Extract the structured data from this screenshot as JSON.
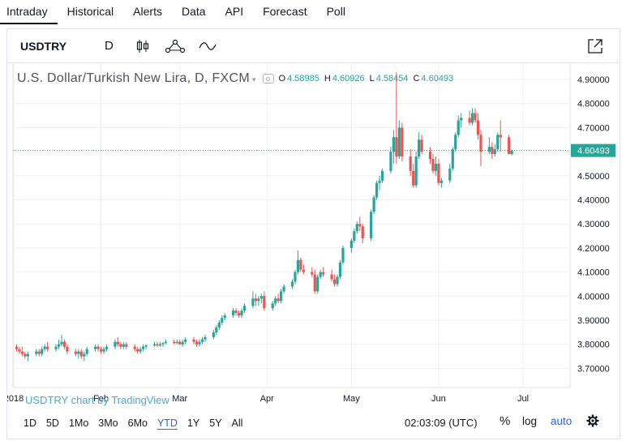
{
  "tabs": [
    "Intraday",
    "Historical",
    "Alerts",
    "Data",
    "API",
    "Forecast",
    "Poll"
  ],
  "toolbar": {
    "symbol": "USDTRY",
    "interval": "D",
    "icons": [
      "candles-icon",
      "indicators-icon",
      "compare-icon",
      "expand-icon"
    ]
  },
  "legend": {
    "title": "U.S. Dollar/Turkish New Lira, D, FXCM",
    "o_label": "O",
    "o": "4.58985",
    "h_label": "H",
    "h": "4.60926",
    "l_label": "L",
    "l": "4.58454",
    "c_label": "C",
    "c": "4.60493"
  },
  "watermark": "USDTRY chart by TradingView",
  "bottombar": {
    "ranges": [
      "1D",
      "5D",
      "1Mo",
      "3Mo",
      "6Mo",
      "YTD",
      "1Y",
      "5Y",
      "All"
    ],
    "active_range": "YTD",
    "clock": "02:03:09 (UTC)",
    "percent": "%",
    "log": "log",
    "auto": "auto",
    "settings_icon": "gear-icon"
  },
  "colors": {
    "up": "#26a69a",
    "down": "#ef5350",
    "price_tag": "#26a69a",
    "grid": "#eef0f3"
  },
  "chart_data": {
    "type": "candlestick",
    "symbol": "USDTRY",
    "ylim": [
      3.65,
      4.95
    ],
    "yticks": [
      "3.70000",
      "3.80000",
      "3.90000",
      "4.00000",
      "4.10000",
      "4.20000",
      "4.30000",
      "4.40000",
      "4.50000",
      "4.60000",
      "4.70000",
      "4.80000",
      "4.90000"
    ],
    "x_labels": [
      {
        "label": "2018",
        "day": 0
      },
      {
        "label": "Feb",
        "day": 31
      },
      {
        "label": "Mar",
        "day": 59
      },
      {
        "label": "Apr",
        "day": 90
      },
      {
        "label": "May",
        "day": 120
      },
      {
        "label": "Jun",
        "day": 151
      },
      {
        "label": "Jul",
        "day": 181
      }
    ],
    "xlim": [
      0,
      198
    ],
    "last_price": 4.60493,
    "last_price_label": "4.60493",
    "candles": [
      {
        "d": 1,
        "o": 3.79,
        "h": 3.8,
        "l": 3.77,
        "c": 3.78
      },
      {
        "d": 2,
        "o": 3.78,
        "h": 3.79,
        "l": 3.76,
        "c": 3.77
      },
      {
        "d": 3,
        "o": 3.77,
        "h": 3.79,
        "l": 3.75,
        "c": 3.76
      },
      {
        "d": 4,
        "o": 3.76,
        "h": 3.77,
        "l": 3.74,
        "c": 3.75
      },
      {
        "d": 5,
        "o": 3.75,
        "h": 3.77,
        "l": 3.73,
        "c": 3.76
      },
      {
        "d": 8,
        "o": 3.76,
        "h": 3.78,
        "l": 3.75,
        "c": 3.77
      },
      {
        "d": 9,
        "o": 3.77,
        "h": 3.78,
        "l": 3.75,
        "c": 3.76
      },
      {
        "d": 10,
        "o": 3.76,
        "h": 3.79,
        "l": 3.75,
        "c": 3.78
      },
      {
        "d": 11,
        "o": 3.78,
        "h": 3.8,
        "l": 3.77,
        "c": 3.79
      },
      {
        "d": 12,
        "o": 3.79,
        "h": 3.81,
        "l": 3.77,
        "c": 3.78
      },
      {
        "d": 15,
        "o": 3.78,
        "h": 3.8,
        "l": 3.77,
        "c": 3.79
      },
      {
        "d": 16,
        "o": 3.79,
        "h": 3.82,
        "l": 3.78,
        "c": 3.8
      },
      {
        "d": 17,
        "o": 3.8,
        "h": 3.84,
        "l": 3.79,
        "c": 3.81
      },
      {
        "d": 18,
        "o": 3.81,
        "h": 3.82,
        "l": 3.78,
        "c": 3.79
      },
      {
        "d": 19,
        "o": 3.79,
        "h": 3.8,
        "l": 3.76,
        "c": 3.77
      },
      {
        "d": 22,
        "o": 3.77,
        "h": 3.78,
        "l": 3.75,
        "c": 3.76
      },
      {
        "d": 23,
        "o": 3.76,
        "h": 3.78,
        "l": 3.74,
        "c": 3.77
      },
      {
        "d": 24,
        "o": 3.77,
        "h": 3.78,
        "l": 3.74,
        "c": 3.75
      },
      {
        "d": 25,
        "o": 3.75,
        "h": 3.77,
        "l": 3.73,
        "c": 3.76
      },
      {
        "d": 26,
        "o": 3.76,
        "h": 3.79,
        "l": 3.75,
        "c": 3.78
      },
      {
        "d": 29,
        "o": 3.78,
        "h": 3.8,
        "l": 3.77,
        "c": 3.79
      },
      {
        "d": 30,
        "o": 3.79,
        "h": 3.8,
        "l": 3.77,
        "c": 3.78
      },
      {
        "d": 31,
        "o": 3.78,
        "h": 3.79,
        "l": 3.76,
        "c": 3.77
      },
      {
        "d": 32,
        "o": 3.77,
        "h": 3.79,
        "l": 3.76,
        "c": 3.78
      },
      {
        "d": 33,
        "o": 3.78,
        "h": 3.8,
        "l": 3.77,
        "c": 3.79
      },
      {
        "d": 36,
        "o": 3.79,
        "h": 3.82,
        "l": 3.78,
        "c": 3.81
      },
      {
        "d": 37,
        "o": 3.81,
        "h": 3.83,
        "l": 3.79,
        "c": 3.8
      },
      {
        "d": 38,
        "o": 3.8,
        "h": 3.81,
        "l": 3.78,
        "c": 3.79
      },
      {
        "d": 39,
        "o": 3.79,
        "h": 3.81,
        "l": 3.78,
        "c": 3.8
      },
      {
        "d": 40,
        "o": 3.8,
        "h": 3.81,
        "l": 3.78,
        "c": 3.79
      },
      {
        "d": 43,
        "o": 3.79,
        "h": 3.8,
        "l": 3.77,
        "c": 3.78
      },
      {
        "d": 44,
        "o": 3.78,
        "h": 3.79,
        "l": 3.76,
        "c": 3.77
      },
      {
        "d": 45,
        "o": 3.77,
        "h": 3.79,
        "l": 3.76,
        "c": 3.78
      },
      {
        "d": 46,
        "o": 3.78,
        "h": 3.8,
        "l": 3.77,
        "c": 3.79
      },
      {
        "d": 47,
        "o": 3.79,
        "h": 3.8,
        "l": 3.78,
        "c": 3.795
      },
      {
        "d": 50,
        "o": 3.795,
        "h": 3.81,
        "l": 3.79,
        "c": 3.8
      },
      {
        "d": 51,
        "o": 3.8,
        "h": 3.81,
        "l": 3.79,
        "c": 3.795
      },
      {
        "d": 52,
        "o": 3.795,
        "h": 3.81,
        "l": 3.79,
        "c": 3.8
      },
      {
        "d": 53,
        "o": 3.8,
        "h": 3.81,
        "l": 3.79,
        "c": 3.805
      },
      {
        "d": 54,
        "o": 3.805,
        "h": 3.82,
        "l": 3.8,
        "c": 3.81
      },
      {
        "d": 57,
        "o": 3.81,
        "h": 3.82,
        "l": 3.8,
        "c": 3.805
      },
      {
        "d": 58,
        "o": 3.805,
        "h": 3.82,
        "l": 3.8,
        "c": 3.81
      },
      {
        "d": 59,
        "o": 3.81,
        "h": 3.82,
        "l": 3.8,
        "c": 3.8
      },
      {
        "d": 60,
        "o": 3.8,
        "h": 3.82,
        "l": 3.79,
        "c": 3.81
      },
      {
        "d": 61,
        "o": 3.81,
        "h": 3.83,
        "l": 3.8,
        "c": 3.82
      },
      {
        "d": 64,
        "o": 3.82,
        "h": 3.83,
        "l": 3.8,
        "c": 3.81
      },
      {
        "d": 65,
        "o": 3.81,
        "h": 3.82,
        "l": 3.79,
        "c": 3.8
      },
      {
        "d": 66,
        "o": 3.8,
        "h": 3.82,
        "l": 3.79,
        "c": 3.81
      },
      {
        "d": 67,
        "o": 3.81,
        "h": 3.83,
        "l": 3.8,
        "c": 3.82
      },
      {
        "d": 68,
        "o": 3.82,
        "h": 3.84,
        "l": 3.81,
        "c": 3.83
      },
      {
        "d": 71,
        "o": 3.83,
        "h": 3.86,
        "l": 3.82,
        "c": 3.85
      },
      {
        "d": 72,
        "o": 3.85,
        "h": 3.88,
        "l": 3.84,
        "c": 3.87
      },
      {
        "d": 73,
        "o": 3.87,
        "h": 3.9,
        "l": 3.86,
        "c": 3.89
      },
      {
        "d": 74,
        "o": 3.89,
        "h": 3.92,
        "l": 3.88,
        "c": 3.91
      },
      {
        "d": 75,
        "o": 3.91,
        "h": 3.93,
        "l": 3.9,
        "c": 3.92
      },
      {
        "d": 78,
        "o": 3.92,
        "h": 3.95,
        "l": 3.91,
        "c": 3.94
      },
      {
        "d": 79,
        "o": 3.94,
        "h": 3.95,
        "l": 3.92,
        "c": 3.93
      },
      {
        "d": 80,
        "o": 3.93,
        "h": 3.94,
        "l": 3.91,
        "c": 3.92
      },
      {
        "d": 81,
        "o": 3.92,
        "h": 3.95,
        "l": 3.91,
        "c": 3.94
      },
      {
        "d": 82,
        "o": 3.94,
        "h": 3.97,
        "l": 3.93,
        "c": 3.96
      },
      {
        "d": 85,
        "o": 3.96,
        "h": 4.02,
        "l": 3.95,
        "c": 3.99
      },
      {
        "d": 86,
        "o": 3.99,
        "h": 4.01,
        "l": 3.96,
        "c": 3.98
      },
      {
        "d": 87,
        "o": 3.98,
        "h": 4.0,
        "l": 3.96,
        "c": 3.99
      },
      {
        "d": 88,
        "o": 3.99,
        "h": 4.01,
        "l": 3.97,
        "c": 4.0
      },
      {
        "d": 89,
        "o": 4.0,
        "h": 4.02,
        "l": 3.94,
        "c": 3.95
      },
      {
        "d": 92,
        "o": 3.95,
        "h": 3.98,
        "l": 3.94,
        "c": 3.97
      },
      {
        "d": 93,
        "o": 3.97,
        "h": 4.0,
        "l": 3.96,
        "c": 3.99
      },
      {
        "d": 94,
        "o": 3.99,
        "h": 4.01,
        "l": 3.97,
        "c": 3.98
      },
      {
        "d": 95,
        "o": 3.98,
        "h": 4.03,
        "l": 3.97,
        "c": 4.02
      },
      {
        "d": 96,
        "o": 4.02,
        "h": 4.05,
        "l": 4.01,
        "c": 4.04
      },
      {
        "d": 99,
        "o": 4.04,
        "h": 4.07,
        "l": 4.03,
        "c": 4.06
      },
      {
        "d": 100,
        "o": 4.06,
        "h": 4.11,
        "l": 4.05,
        "c": 4.1
      },
      {
        "d": 101,
        "o": 4.1,
        "h": 4.19,
        "l": 4.09,
        "c": 4.15
      },
      {
        "d": 102,
        "o": 4.15,
        "h": 4.16,
        "l": 4.1,
        "c": 4.11
      },
      {
        "d": 103,
        "o": 4.11,
        "h": 4.13,
        "l": 4.09,
        "c": 4.1
      },
      {
        "d": 106,
        "o": 4.1,
        "h": 4.12,
        "l": 4.08,
        "c": 4.09
      },
      {
        "d": 107,
        "o": 4.09,
        "h": 4.11,
        "l": 4.01,
        "c": 4.02
      },
      {
        "d": 108,
        "o": 4.02,
        "h": 4.09,
        "l": 4.01,
        "c": 4.08
      },
      {
        "d": 109,
        "o": 4.08,
        "h": 4.11,
        "l": 4.07,
        "c": 4.1
      },
      {
        "d": 110,
        "o": 4.1,
        "h": 4.12,
        "l": 4.08,
        "c": 4.09
      },
      {
        "d": 113,
        "o": 4.09,
        "h": 4.11,
        "l": 4.06,
        "c": 4.07
      },
      {
        "d": 114,
        "o": 4.07,
        "h": 4.09,
        "l": 4.04,
        "c": 4.05
      },
      {
        "d": 115,
        "o": 4.05,
        "h": 4.09,
        "l": 4.04,
        "c": 4.08
      },
      {
        "d": 116,
        "o": 4.08,
        "h": 4.15,
        "l": 4.07,
        "c": 4.14
      },
      {
        "d": 117,
        "o": 4.14,
        "h": 4.21,
        "l": 4.13,
        "c": 4.2
      },
      {
        "d": 120,
        "o": 4.2,
        "h": 4.24,
        "l": 4.18,
        "c": 4.23
      },
      {
        "d": 121,
        "o": 4.23,
        "h": 4.28,
        "l": 4.22,
        "c": 4.27
      },
      {
        "d": 122,
        "o": 4.27,
        "h": 4.31,
        "l": 4.26,
        "c": 4.3
      },
      {
        "d": 123,
        "o": 4.3,
        "h": 4.33,
        "l": 4.27,
        "c": 4.29
      },
      {
        "d": 124,
        "o": 4.29,
        "h": 4.3,
        "l": 4.22,
        "c": 4.24
      },
      {
        "d": 127,
        "o": 4.24,
        "h": 4.36,
        "l": 4.23,
        "c": 4.35
      },
      {
        "d": 128,
        "o": 4.35,
        "h": 4.42,
        "l": 4.34,
        "c": 4.41
      },
      {
        "d": 129,
        "o": 4.41,
        "h": 4.48,
        "l": 4.4,
        "c": 4.47
      },
      {
        "d": 130,
        "o": 4.47,
        "h": 4.5,
        "l": 4.44,
        "c": 4.48
      },
      {
        "d": 131,
        "o": 4.48,
        "h": 4.53,
        "l": 4.47,
        "c": 4.52
      },
      {
        "d": 134,
        "o": 4.52,
        "h": 4.62,
        "l": 4.51,
        "c": 4.6
      },
      {
        "d": 135,
        "o": 4.6,
        "h": 4.69,
        "l": 4.55,
        "c": 4.66
      },
      {
        "d": 136,
        "o": 4.66,
        "h": 4.93,
        "l": 4.55,
        "c": 4.58
      },
      {
        "d": 137,
        "o": 4.58,
        "h": 4.73,
        "l": 4.57,
        "c": 4.7
      },
      {
        "d": 138,
        "o": 4.7,
        "h": 4.72,
        "l": 4.56,
        "c": 4.58
      },
      {
        "d": 141,
        "o": 4.58,
        "h": 4.61,
        "l": 4.5,
        "c": 4.52
      },
      {
        "d": 142,
        "o": 4.52,
        "h": 4.55,
        "l": 4.45,
        "c": 4.46
      },
      {
        "d": 143,
        "o": 4.46,
        "h": 4.6,
        "l": 4.45,
        "c": 4.58
      },
      {
        "d": 144,
        "o": 4.58,
        "h": 4.68,
        "l": 4.57,
        "c": 4.65
      },
      {
        "d": 145,
        "o": 4.65,
        "h": 4.67,
        "l": 4.59,
        "c": 4.6
      },
      {
        "d": 148,
        "o": 4.6,
        "h": 4.62,
        "l": 4.55,
        "c": 4.57
      },
      {
        "d": 149,
        "o": 4.57,
        "h": 4.59,
        "l": 4.51,
        "c": 4.52
      },
      {
        "d": 150,
        "o": 4.52,
        "h": 4.58,
        "l": 4.5,
        "c": 4.55
      },
      {
        "d": 151,
        "o": 4.55,
        "h": 4.57,
        "l": 4.46,
        "c": 4.47
      },
      {
        "d": 152,
        "o": 4.47,
        "h": 4.49,
        "l": 4.45,
        "c": 4.48
      },
      {
        "d": 155,
        "o": 4.48,
        "h": 4.55,
        "l": 4.47,
        "c": 4.53
      },
      {
        "d": 156,
        "o": 4.53,
        "h": 4.62,
        "l": 4.52,
        "c": 4.61
      },
      {
        "d": 157,
        "o": 4.61,
        "h": 4.68,
        "l": 4.6,
        "c": 4.67
      },
      {
        "d": 158,
        "o": 4.67,
        "h": 4.75,
        "l": 4.66,
        "c": 4.73
      },
      {
        "d": 159,
        "o": 4.73,
        "h": 4.76,
        "l": 4.7,
        "c": 4.74
      },
      {
        "d": 162,
        "o": 4.74,
        "h": 4.77,
        "l": 4.71,
        "c": 4.72
      },
      {
        "d": 163,
        "o": 4.72,
        "h": 4.78,
        "l": 4.71,
        "c": 4.76
      },
      {
        "d": 164,
        "o": 4.76,
        "h": 4.78,
        "l": 4.72,
        "c": 4.73
      },
      {
        "d": 165,
        "o": 4.73,
        "h": 4.76,
        "l": 4.65,
        "c": 4.67
      },
      {
        "d": 166,
        "o": 4.67,
        "h": 4.69,
        "l": 4.54,
        "c": 4.6
      },
      {
        "d": 169,
        "o": 4.6,
        "h": 4.66,
        "l": 4.59,
        "c": 4.62
      },
      {
        "d": 170,
        "o": 4.62,
        "h": 4.64,
        "l": 4.57,
        "c": 4.59
      },
      {
        "d": 171,
        "o": 4.59,
        "h": 4.63,
        "l": 4.58,
        "c": 4.61
      },
      {
        "d": 172,
        "o": 4.61,
        "h": 4.68,
        "l": 4.6,
        "c": 4.67
      },
      {
        "d": 173,
        "o": 4.67,
        "h": 4.73,
        "l": 4.6,
        "c": 4.66
      },
      {
        "d": 176,
        "o": 4.66,
        "h": 4.67,
        "l": 4.59,
        "c": 4.59
      },
      {
        "d": 177,
        "o": 4.58985,
        "h": 4.60926,
        "l": 4.58454,
        "c": 4.60493
      }
    ]
  }
}
